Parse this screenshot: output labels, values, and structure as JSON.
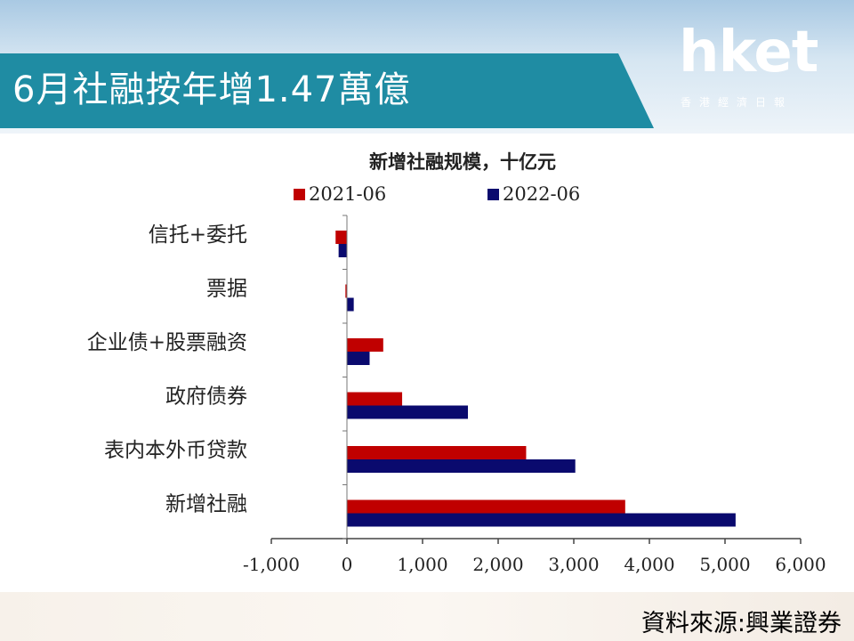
{
  "header": {
    "title": "6月社融按年增1.47萬億",
    "logo_text": "hket",
    "logo_subtitle": "香港經濟日報"
  },
  "footer": {
    "source": "資料來源:興業證券"
  },
  "colors": {
    "series_2021": "#c00000",
    "series_2022": "#0a0a6e",
    "banner": "#1f8ca3"
  },
  "chart_data": {
    "type": "bar",
    "orientation": "horizontal",
    "title": "新增社融规模，十亿元",
    "categories": [
      "信托+委托",
      "票据",
      "企业债+股票融资",
      "政府债券",
      "表内本外币贷款",
      "新增社融"
    ],
    "series": [
      {
        "name": "2021-06",
        "values": [
          -150,
          -20,
          480,
          730,
          2370,
          3680
        ]
      },
      {
        "name": "2022-06",
        "values": [
          -110,
          90,
          300,
          1600,
          3020,
          5140
        ]
      }
    ],
    "xlim": [
      -1000,
      6000
    ],
    "xticks": [
      -1000,
      0,
      1000,
      2000,
      3000,
      4000,
      5000,
      6000
    ],
    "xtick_labels": [
      "-1,000",
      "0",
      "1,000",
      "2,000",
      "3,000",
      "4,000",
      "5,000",
      "6,000"
    ],
    "legend_position": "top",
    "grid": false
  }
}
